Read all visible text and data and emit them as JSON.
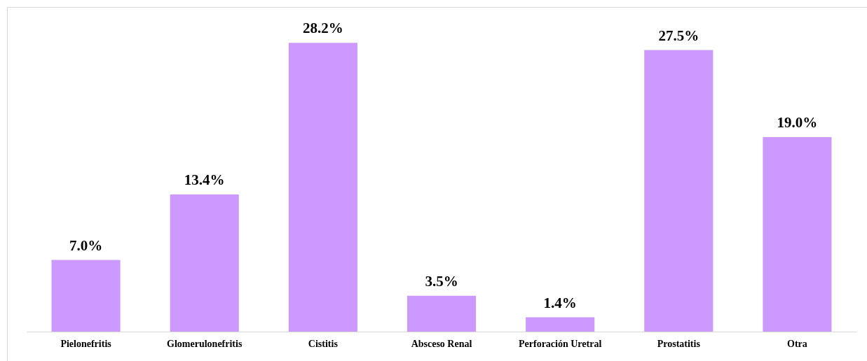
{
  "chart_data": {
    "type": "bar",
    "categories": [
      "Pielonefritis",
      "Glomerulonefritis",
      "Cistitis",
      "Absceso Renal",
      "Perforación Uretral",
      "Prostatitis",
      "Otra"
    ],
    "values": [
      7.0,
      13.4,
      28.2,
      3.5,
      1.4,
      27.5,
      19.0
    ],
    "value_labels": [
      "7.0%",
      "13.4%",
      "28.2%",
      "3.5%",
      "1.4%",
      "27.5%",
      "19.0%"
    ],
    "color": "#cc99ff"
  }
}
